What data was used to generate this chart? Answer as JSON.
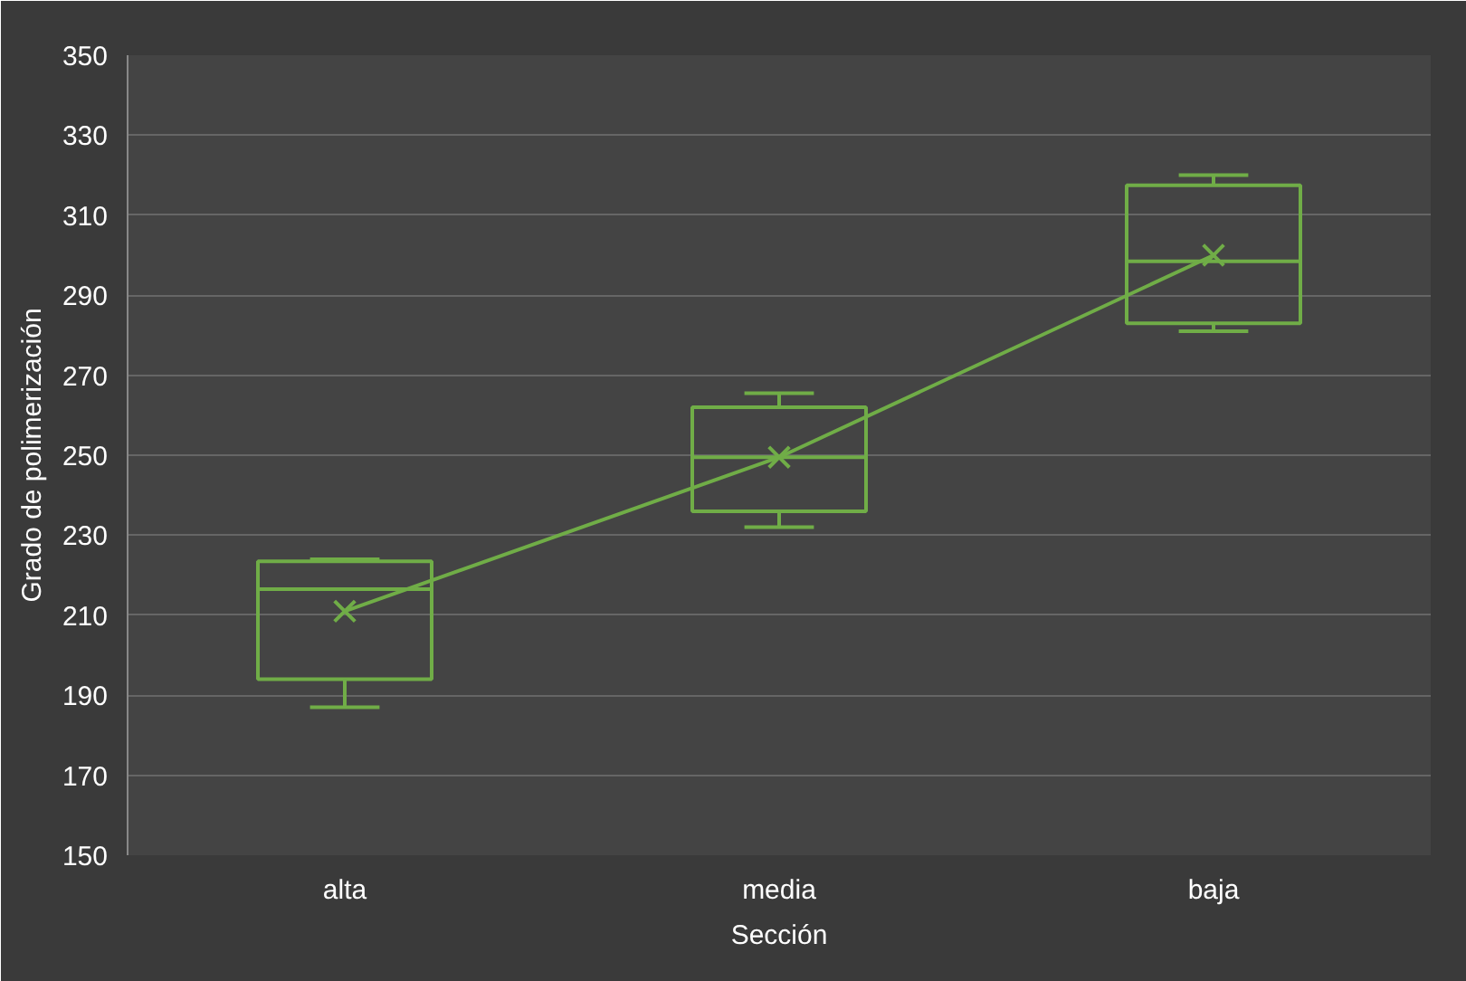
{
  "chart_data": {
    "type": "box",
    "xlabel": "Sección",
    "ylabel": "Grado de polimerización",
    "categories": [
      "alta",
      "media",
      "baja"
    ],
    "boxes": [
      {
        "low": 187,
        "q1": 194,
        "median": 216.5,
        "q3": 223.5,
        "high": 224,
        "mean": 211
      },
      {
        "low": 232,
        "q1": 236,
        "median": 249.5,
        "q3": 262,
        "high": 265.5,
        "mean": 249.5
      },
      {
        "low": 281,
        "q1": 283,
        "median": 298.5,
        "q3": 317.5,
        "high": 320,
        "mean": 300
      }
    ],
    "color": "#70ad47",
    "series": [
      {
        "type": "line",
        "color": "#70ad47",
        "x": [
          "alta",
          "media",
          "baja"
        ],
        "values": [
          211,
          249.5,
          300
        ]
      }
    ],
    "ylim": [
      150,
      350
    ],
    "yticks": [
      150,
      170,
      190,
      210,
      230,
      250,
      270,
      290,
      310,
      330,
      350
    ],
    "grid": "y"
  }
}
